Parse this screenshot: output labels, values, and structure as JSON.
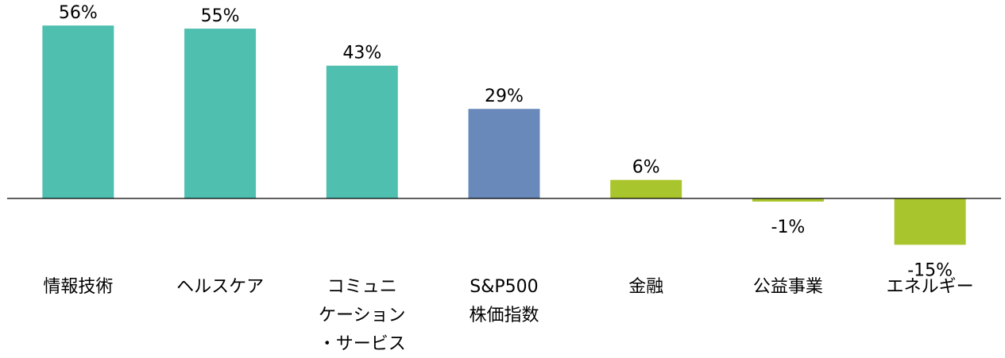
{
  "chart_data": {
    "type": "bar",
    "categories": [
      [
        "情報技術"
      ],
      [
        "ヘルスケア"
      ],
      [
        "コミュニ",
        "ケーション",
        "・サービス"
      ],
      [
        "S&P500",
        "株価指数"
      ],
      [
        "金融"
      ],
      [
        "公益事業"
      ],
      [
        "エネルギー"
      ]
    ],
    "values": [
      56,
      55,
      43,
      29,
      6,
      -1,
      -15
    ],
    "value_labels": [
      "56%",
      "55%",
      "43%",
      "29%",
      "6%",
      "-1%",
      "-15%"
    ],
    "colors": [
      "#4fbfb0",
      "#4fbfb0",
      "#4fbfb0",
      "#6a89bb",
      "#a9c52d",
      "#a9c52d",
      "#a9c52d"
    ]
  }
}
